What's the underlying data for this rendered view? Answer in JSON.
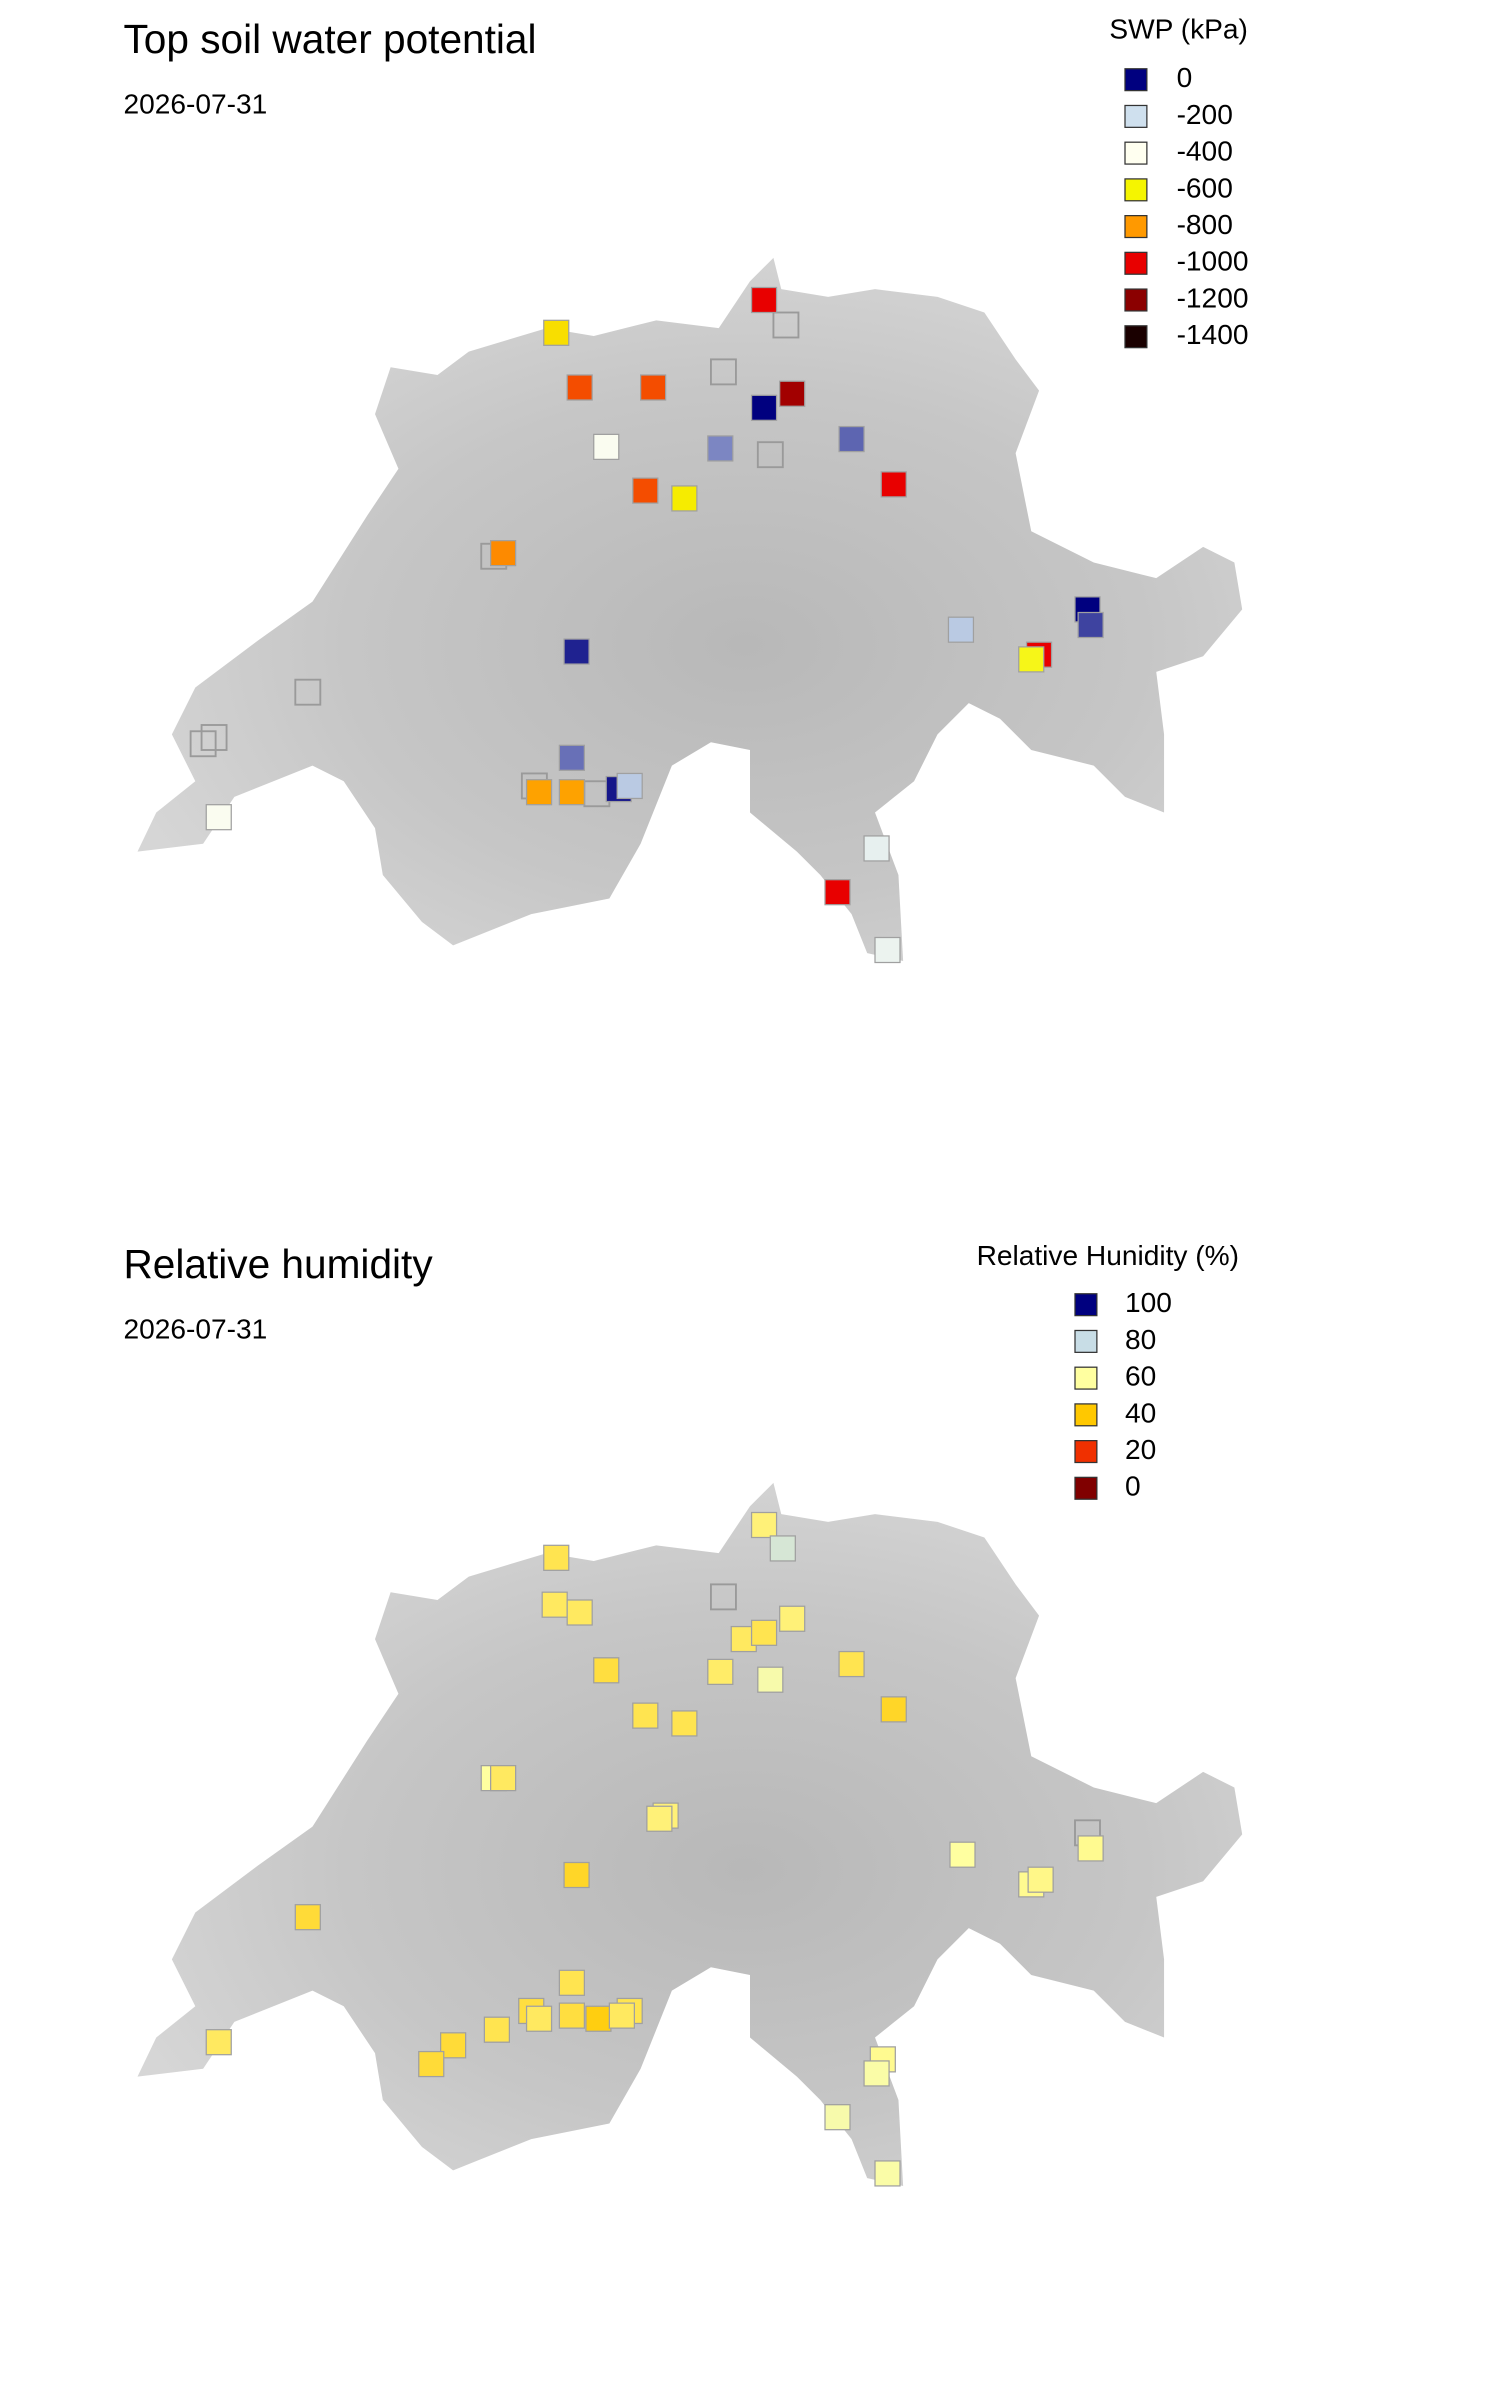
{
  "panels": [
    {
      "title": "Top soil water potential",
      "date": "2026-07-31",
      "legend": {
        "title": "SWP (kPa)",
        "items": [
          {
            "value": 0,
            "color": "#00007f"
          },
          {
            "value": -200,
            "color": "#cfe0ee"
          },
          {
            "value": -400,
            "color": "#fffff0"
          },
          {
            "value": -600,
            "color": "#f5f500"
          },
          {
            "value": -800,
            "color": "#ff9900"
          },
          {
            "value": -1000,
            "color": "#e80000"
          },
          {
            "value": -1200,
            "color": "#8b0000"
          },
          {
            "value": -1400,
            "color": "#1a0000"
          }
        ]
      },
      "stations": {
        "values": [
          -1000,
          -650,
          -900,
          -900,
          0,
          -1150,
          -380,
          -120,
          -90,
          -900,
          -620,
          -1000,
          -820,
          -30,
          0,
          -60,
          -180,
          -1000,
          -580,
          -100,
          -780,
          -780,
          -20,
          -180,
          -380,
          -300,
          -1000,
          -320
        ]
      }
    },
    {
      "title": "Relative humidity",
      "date": "2026-07-31",
      "legend": {
        "title": "Relative Hunidity (%)",
        "items": [
          {
            "value": 100,
            "color": "#00007f"
          },
          {
            "value": 80,
            "color": "#c8dde6"
          },
          {
            "value": 60,
            "color": "#ffffa0"
          },
          {
            "value": 40,
            "color": "#ffc800"
          },
          {
            "value": 20,
            "color": "#f03000"
          },
          {
            "value": 0,
            "color": "#800000"
          }
        ]
      },
      "stations": {
        "values": [
          55,
          75,
          50,
          52,
          52,
          52,
          50,
          55,
          48,
          53,
          50,
          63,
          45,
          50,
          50,
          60,
          52,
          55,
          55,
          45,
          47,
          60,
          58,
          58,
          57,
          50,
          48,
          52,
          48,
          42,
          50,
          52,
          50,
          47,
          47,
          52,
          58,
          62,
          63,
          62
        ]
      }
    }
  ]
}
